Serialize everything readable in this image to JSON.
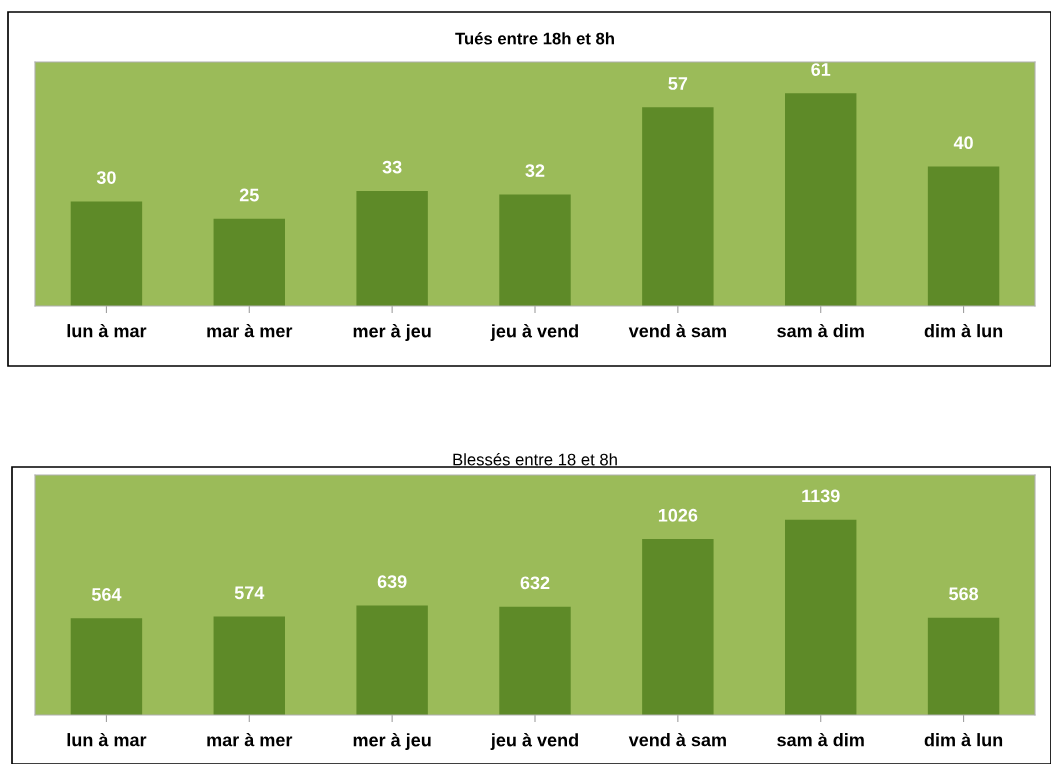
{
  "chart_data": [
    {
      "type": "bar",
      "title": "Tués entre 18h et 8h",
      "categories": [
        "lun à mar",
        "mar à mer",
        "mer à jeu",
        "jeu à vend",
        "vend à sam",
        "sam à dim",
        "dim à lun"
      ],
      "values": [
        30,
        25,
        33,
        32,
        57,
        61,
        40
      ],
      "color": "#5e8a28",
      "ylim": [
        0,
        70
      ],
      "data_labels": true,
      "tick_labels": "x",
      "grid": false,
      "legend": false
    },
    {
      "type": "bar",
      "title": "Blessés entre 18 et 8h",
      "categories": [
        "lun à mar",
        "mar à mer",
        "mer à jeu",
        "jeu à vend",
        "vend à sam",
        "sam à dim",
        "dim à lun"
      ],
      "values": [
        564,
        574,
        639,
        632,
        1026,
        1139,
        568
      ],
      "color": "#5e8a28",
      "ylim": [
        0,
        1400
      ],
      "data_labels": true,
      "tick_labels": "x",
      "grid": false,
      "legend": false
    }
  ]
}
